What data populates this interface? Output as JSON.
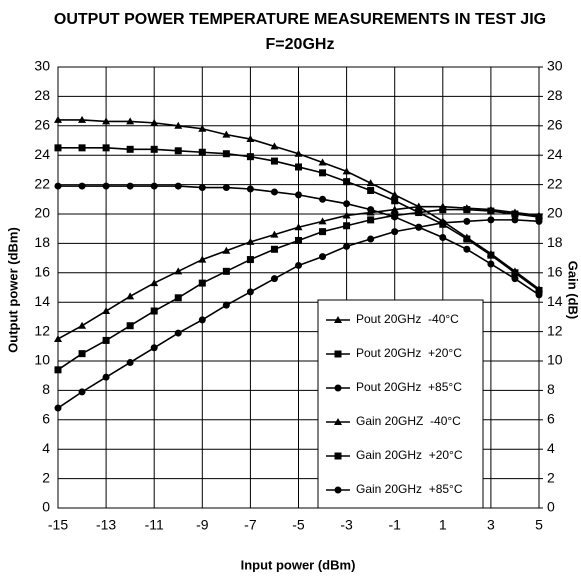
{
  "chart_data": {
    "type": "line",
    "title": "OUTPUT POWER TEMPERATURE MEASUREMENTS IN TEST JIG",
    "subtitle": "F=20GHz",
    "x_label": "Input power (dBm)",
    "y_label": "Output power (dBm)",
    "y2_label": "Gain (dB)",
    "x": [
      -15,
      -14,
      -13,
      -12,
      -11,
      -10,
      -9,
      -8,
      -7,
      -6,
      -5,
      -4,
      -3,
      -2,
      -1,
      0,
      1,
      2,
      3,
      4,
      5
    ],
    "xlim": [
      -15,
      5
    ],
    "xticks": [
      -15,
      -13,
      -11,
      -9,
      -7,
      -5,
      -3,
      -1,
      1,
      3,
      5
    ],
    "ylim": [
      0,
      30
    ],
    "yticks": [
      0,
      2,
      4,
      6,
      8,
      10,
      12,
      14,
      16,
      18,
      20,
      22,
      24,
      26,
      28,
      30
    ],
    "y2lim": [
      0,
      30
    ],
    "y2ticks": [
      0,
      2,
      4,
      6,
      8,
      10,
      12,
      14,
      16,
      18,
      20,
      22,
      24,
      26,
      28,
      30
    ],
    "grid": true,
    "series": [
      {
        "name": "Pout 20GHz  -40°C",
        "color": "#000000",
        "marker": "triangle",
        "values": [
          11.5,
          12.4,
          13.4,
          14.4,
          15.3,
          16.1,
          16.9,
          17.5,
          18.1,
          18.6,
          19.1,
          19.5,
          19.9,
          20.1,
          20.3,
          20.5,
          20.5,
          20.4,
          20.3,
          20.1,
          19.9
        ]
      },
      {
        "name": "Pout 20GHz  +20°C",
        "color": "#000000",
        "marker": "square",
        "values": [
          9.4,
          10.5,
          11.4,
          12.4,
          13.4,
          14.3,
          15.3,
          16.1,
          16.9,
          17.6,
          18.2,
          18.8,
          19.2,
          19.6,
          19.9,
          20.1,
          20.3,
          20.3,
          20.2,
          20.0,
          19.8
        ]
      },
      {
        "name": "Pout 20GHz  +85°C",
        "color": "#000000",
        "marker": "circle",
        "values": [
          6.8,
          7.9,
          8.9,
          9.9,
          10.9,
          11.9,
          12.8,
          13.8,
          14.7,
          15.6,
          16.5,
          17.1,
          17.8,
          18.3,
          18.8,
          19.1,
          19.4,
          19.5,
          19.6,
          19.6,
          19.5
        ]
      },
      {
        "name": "Gain 20GHZ  -40°C",
        "color": "#000000",
        "marker": "triangle",
        "axis": "y2",
        "values": [
          26.4,
          26.4,
          26.3,
          26.3,
          26.2,
          26.0,
          25.8,
          25.4,
          25.1,
          24.6,
          24.1,
          23.5,
          22.9,
          22.1,
          21.3,
          20.5,
          19.5,
          18.4,
          17.3,
          16.1,
          14.9
        ]
      },
      {
        "name": "Gain 20GHz  +20°C",
        "color": "#000000",
        "marker": "square",
        "axis": "y2",
        "values": [
          24.5,
          24.5,
          24.5,
          24.4,
          24.4,
          24.3,
          24.2,
          24.1,
          23.9,
          23.6,
          23.2,
          22.8,
          22.2,
          21.6,
          20.9,
          20.1,
          19.3,
          18.3,
          17.2,
          16.0,
          14.8
        ]
      },
      {
        "name": "Gain 20GHz  +85°C",
        "color": "#000000",
        "marker": "circle",
        "axis": "y2",
        "values": [
          21.9,
          21.9,
          21.9,
          21.9,
          21.9,
          21.9,
          21.8,
          21.8,
          21.7,
          21.5,
          21.3,
          21.0,
          20.7,
          20.3,
          19.8,
          19.1,
          18.4,
          17.6,
          16.6,
          15.6,
          14.5
        ]
      }
    ]
  }
}
